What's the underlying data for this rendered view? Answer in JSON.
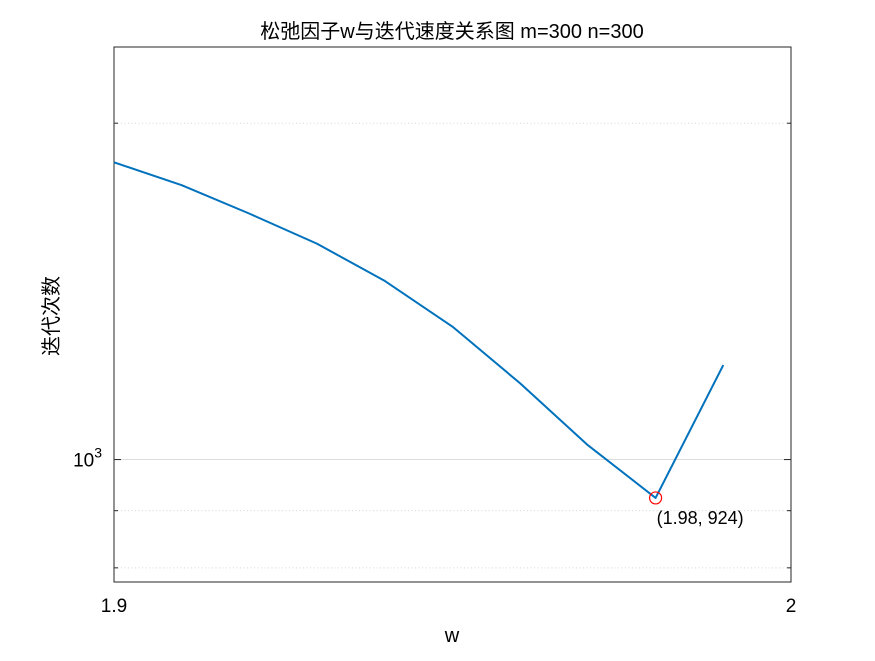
{
  "chart_data": {
    "type": "line",
    "title": "松弛因子w与迭代速度关系图 m=300 n=300",
    "xlabel": "w",
    "ylabel": "迭代次数",
    "xlim": [
      1.9,
      2.0
    ],
    "ylim": [
      777,
      2340
    ],
    "yscale": "log",
    "grid": true,
    "x_ticks": [
      "1.9",
      "2"
    ],
    "y_ticks": [
      {
        "value": 1000,
        "base": "10",
        "exp": "3"
      }
    ],
    "series": [
      {
        "color": "#0072BD",
        "x": [
          1.9,
          1.91,
          1.92,
          1.93,
          1.94,
          1.95,
          1.96,
          1.97,
          1.98,
          1.99
        ],
        "y": [
          1845,
          1760,
          1660,
          1560,
          1445,
          1315,
          1170,
          1030,
          924,
          1215
        ]
      }
    ],
    "annotations": [
      {
        "x": 1.98,
        "y": 924,
        "text": "(1.98, 924)",
        "marker": "circle",
        "marker_color": "#ff0000"
      }
    ]
  }
}
